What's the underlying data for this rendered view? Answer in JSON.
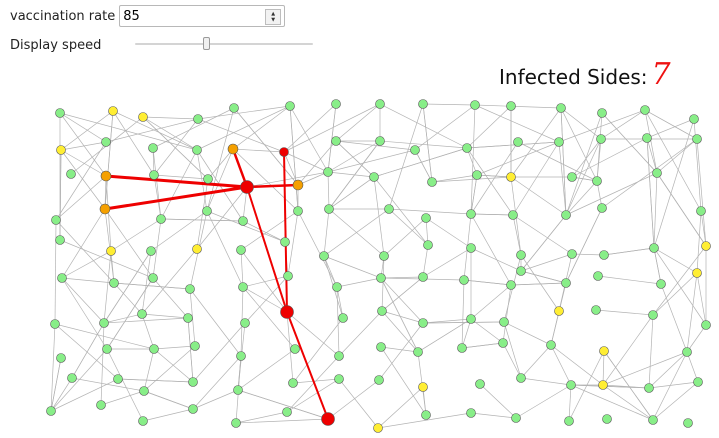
{
  "controls": {
    "vaccination_label": "vaccination rate",
    "vaccination_value": "85",
    "speed_label": "Display speed"
  },
  "status": {
    "infected_label": "Infected Sides:",
    "infected_count": "7"
  },
  "colors": {
    "healthy": "#88ee88",
    "vaccinated": "#ffee33",
    "exposed": "#f5a000",
    "infected": "#ee0000",
    "edge": "#b3b3b3",
    "infected_edge": "#ee0000"
  }
}
